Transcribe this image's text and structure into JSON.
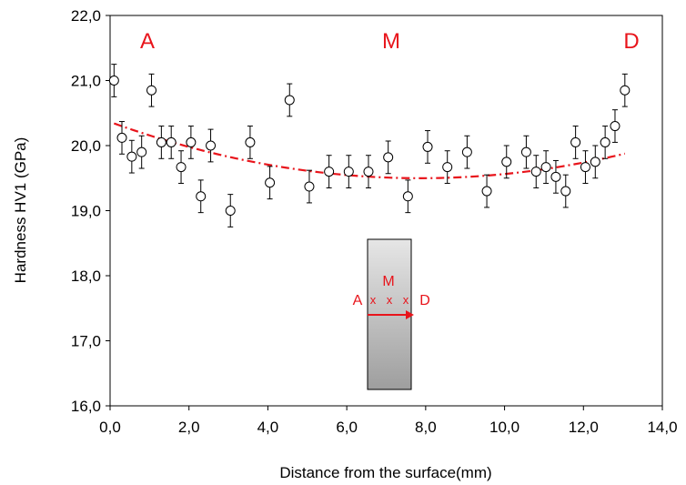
{
  "chart_data": {
    "type": "scatter",
    "xlabel": "Distance from the surface(mm)",
    "ylabel": "Hardness HV1 (GPa)",
    "xlim": [
      0,
      14
    ],
    "ylim": [
      16,
      22
    ],
    "x_ticks": [
      "0,0",
      "2,0",
      "4,0",
      "6,0",
      "8,0",
      "10,0",
      "12,0",
      "14,0"
    ],
    "y_ticks": [
      "16,0",
      "17,0",
      "18,0",
      "19,0",
      "20,0",
      "21,0",
      "22,0"
    ],
    "grid": false,
    "series": [
      {
        "marker": "open-circle",
        "error_bars": true,
        "points": [
          {
            "x": 0.1,
            "y": 21.0,
            "err": 0.25
          },
          {
            "x": 0.3,
            "y": 20.12,
            "err": 0.25
          },
          {
            "x": 0.55,
            "y": 19.83,
            "err": 0.25
          },
          {
            "x": 0.8,
            "y": 19.9,
            "err": 0.25
          },
          {
            "x": 1.05,
            "y": 20.85,
            "err": 0.25
          },
          {
            "x": 1.3,
            "y": 20.05,
            "err": 0.25
          },
          {
            "x": 1.55,
            "y": 20.05,
            "err": 0.25
          },
          {
            "x": 1.8,
            "y": 19.67,
            "err": 0.25
          },
          {
            "x": 2.05,
            "y": 20.05,
            "err": 0.25
          },
          {
            "x": 2.3,
            "y": 19.22,
            "err": 0.25
          },
          {
            "x": 2.55,
            "y": 20.0,
            "err": 0.25
          },
          {
            "x": 3.05,
            "y": 19.0,
            "err": 0.25
          },
          {
            "x": 3.55,
            "y": 20.05,
            "err": 0.25
          },
          {
            "x": 4.05,
            "y": 19.43,
            "err": 0.25
          },
          {
            "x": 4.55,
            "y": 20.7,
            "err": 0.25
          },
          {
            "x": 5.05,
            "y": 19.37,
            "err": 0.25
          },
          {
            "x": 5.55,
            "y": 19.6,
            "err": 0.25
          },
          {
            "x": 6.05,
            "y": 19.6,
            "err": 0.25
          },
          {
            "x": 6.55,
            "y": 19.6,
            "err": 0.25
          },
          {
            "x": 7.05,
            "y": 19.82,
            "err": 0.25
          },
          {
            "x": 7.55,
            "y": 19.22,
            "err": 0.25
          },
          {
            "x": 8.05,
            "y": 19.98,
            "err": 0.25
          },
          {
            "x": 8.55,
            "y": 19.67,
            "err": 0.25
          },
          {
            "x": 9.05,
            "y": 19.9,
            "err": 0.25
          },
          {
            "x": 9.55,
            "y": 19.3,
            "err": 0.25
          },
          {
            "x": 10.05,
            "y": 19.75,
            "err": 0.25
          },
          {
            "x": 10.55,
            "y": 19.9,
            "err": 0.25
          },
          {
            "x": 10.8,
            "y": 19.6,
            "err": 0.25
          },
          {
            "x": 11.05,
            "y": 19.67,
            "err": 0.25
          },
          {
            "x": 11.3,
            "y": 19.52,
            "err": 0.25
          },
          {
            "x": 11.55,
            "y": 19.3,
            "err": 0.25
          },
          {
            "x": 11.8,
            "y": 20.05,
            "err": 0.25
          },
          {
            "x": 12.05,
            "y": 19.67,
            "err": 0.25
          },
          {
            "x": 12.3,
            "y": 19.75,
            "err": 0.25
          },
          {
            "x": 12.55,
            "y": 20.05,
            "err": 0.25
          },
          {
            "x": 12.8,
            "y": 20.3,
            "err": 0.25
          },
          {
            "x": 13.05,
            "y": 20.85,
            "err": 0.25
          }
        ]
      }
    ],
    "trendline": {
      "style": "dash-dot",
      "color": "#e8141b",
      "x": [
        0.1,
        13.05
      ],
      "coefficients": [
        20.363,
        -0.22,
        0.014
      ]
    },
    "annotations": {
      "region_a": "A",
      "region_m": "M",
      "region_d": "D",
      "inset_m": "M",
      "inset_a": "A",
      "inset_d": "D",
      "inset_marks": [
        "x",
        "x",
        "x"
      ]
    }
  }
}
